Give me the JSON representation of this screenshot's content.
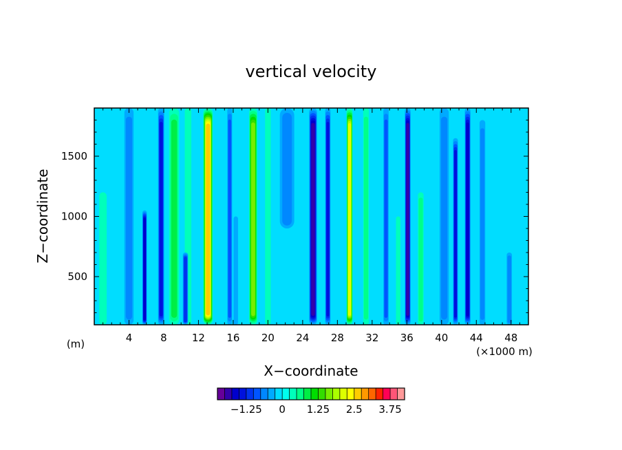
{
  "chart_data": {
    "type": "heatmap",
    "title": "vertical velocity",
    "xlabel": "X−coordinate",
    "ylabel": "Z−coordinate",
    "x_unit_label": "(×1000 m)",
    "y_unit_label": "(m)",
    "xlim": [
      0,
      50
    ],
    "ylim": [
      100,
      1900
    ],
    "x_ticks": [
      4,
      8,
      12,
      16,
      20,
      24,
      28,
      32,
      36,
      40,
      44,
      48
    ],
    "x_tick_labels": [
      "4",
      "8",
      "12",
      "16",
      "20",
      "24",
      "28",
      "32",
      "36",
      "40",
      "44",
      "48"
    ],
    "y_ticks": [
      500,
      1000,
      1500
    ],
    "y_tick_labels": [
      "500",
      "1000",
      "1500"
    ],
    "background_value": -0.1,
    "columns": [
      {
        "x": 1.0,
        "w": 0.7,
        "v": 0.35,
        "z0": 100,
        "z1": 1200
      },
      {
        "x": 4.0,
        "w": 0.9,
        "v": -0.55,
        "z0": 100,
        "z1": 1900
      },
      {
        "x": 5.8,
        "w": 0.35,
        "v": -1.5,
        "z0": 100,
        "z1": 1050
      },
      {
        "x": 7.7,
        "w": 0.55,
        "v": -1.3,
        "z0": 100,
        "z1": 1900
      },
      {
        "x": 9.2,
        "w": 1.0,
        "v": 0.8,
        "z0": 100,
        "z1": 1900
      },
      {
        "x": 10.8,
        "w": 0.6,
        "v": 0.3,
        "z0": 100,
        "z1": 1900
      },
      {
        "x": 13.1,
        "w": 0.95,
        "v": 2.6,
        "z0": 100,
        "z1": 1900
      },
      {
        "x": 10.5,
        "w": 0.45,
        "v": -1.1,
        "z0": 100,
        "z1": 700
      },
      {
        "x": 15.6,
        "w": 0.4,
        "v": -0.7,
        "z0": 100,
        "z1": 1900
      },
      {
        "x": 18.3,
        "w": 0.8,
        "v": 1.45,
        "z0": 100,
        "z1": 1900
      },
      {
        "x": 16.3,
        "w": 0.35,
        "v": -0.3,
        "z0": 100,
        "z1": 1000
      },
      {
        "x": 20.0,
        "w": 0.5,
        "v": 0.0,
        "z0": 100,
        "z1": 1900
      },
      {
        "x": 22.2,
        "w": 1.5,
        "v": -0.55,
        "z0": 900,
        "z1": 1900
      },
      {
        "x": 25.2,
        "w": 0.75,
        "v": -1.75,
        "z0": 100,
        "z1": 1900
      },
      {
        "x": 26.9,
        "w": 0.45,
        "v": -1.2,
        "z0": 100,
        "z1": 1900
      },
      {
        "x": 29.4,
        "w": 0.55,
        "v": 2.1,
        "z0": 100,
        "z1": 1900
      },
      {
        "x": 31.3,
        "w": 0.5,
        "v": 0.45,
        "z0": 100,
        "z1": 1900
      },
      {
        "x": 33.6,
        "w": 0.45,
        "v": -0.8,
        "z0": 100,
        "z1": 1900
      },
      {
        "x": 35.0,
        "w": 0.35,
        "v": 0.1,
        "z0": 100,
        "z1": 1000
      },
      {
        "x": 36.1,
        "w": 0.5,
        "v": -1.7,
        "z0": 100,
        "z1": 1900
      },
      {
        "x": 37.6,
        "w": 0.5,
        "v": 0.55,
        "z0": 100,
        "z1": 1200
      },
      {
        "x": 40.3,
        "w": 0.9,
        "v": -0.55,
        "z0": 100,
        "z1": 1900
      },
      {
        "x": 41.6,
        "w": 0.4,
        "v": -1.2,
        "z0": 100,
        "z1": 1650
      },
      {
        "x": 43.0,
        "w": 0.5,
        "v": -1.6,
        "z0": 100,
        "z1": 1900
      },
      {
        "x": 44.7,
        "w": 0.5,
        "v": -0.4,
        "z0": 100,
        "z1": 1800
      },
      {
        "x": 47.8,
        "w": 0.45,
        "v": -0.5,
        "z0": 100,
        "z1": 700
      }
    ],
    "colorbar": {
      "levels": [
        -1.75,
        -1.5,
        -1.25,
        -1.0,
        -0.75,
        -0.5,
        -0.25,
        0,
        0.25,
        0.5,
        0.75,
        1.0,
        1.25,
        1.5,
        1.75,
        2.0,
        2.25,
        2.5,
        2.75,
        3.0,
        3.25,
        3.5,
        3.75
      ],
      "colors": [
        "#660099",
        "#3300aa",
        "#0000cc",
        "#0011dd",
        "#0033ee",
        "#0055ff",
        "#0088ff",
        "#00aaff",
        "#00ddff",
        "#00ffee",
        "#00ffbb",
        "#00ff88",
        "#00ee44",
        "#00dd00",
        "#33dd00",
        "#77ee00",
        "#aaff00",
        "#ddff00",
        "#ffff00",
        "#ffcc00",
        "#ff9900",
        "#ff6600",
        "#ff2200",
        "#ff0055",
        "#ff5577",
        "#ff9999"
      ],
      "tick_labels": [
        "−1.25",
        "0",
        "1.25",
        "2.5",
        "3.75"
      ],
      "tick_values": [
        -1.25,
        0,
        1.25,
        2.5,
        3.75
      ]
    }
  }
}
